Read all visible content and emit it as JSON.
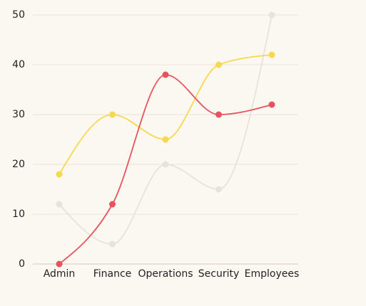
{
  "chart_data": {
    "type": "line",
    "curve": "smooth",
    "categories": [
      "Admin",
      "Finance",
      "Operations",
      "Security",
      "Employees"
    ],
    "series": [
      {
        "color": "#e6e2dc",
        "values": [
          12,
          4,
          20,
          15,
          50
        ]
      },
      {
        "color": "#f8d84c",
        "values": [
          18,
          30,
          25,
          40,
          42
        ]
      },
      {
        "color": "#e8525e",
        "values": [
          0,
          12,
          38,
          30,
          32
        ]
      }
    ],
    "ylim": [
      0,
      50
    ],
    "yticks": [
      0,
      10,
      20,
      30,
      40,
      50
    ],
    "grid": true
  }
}
